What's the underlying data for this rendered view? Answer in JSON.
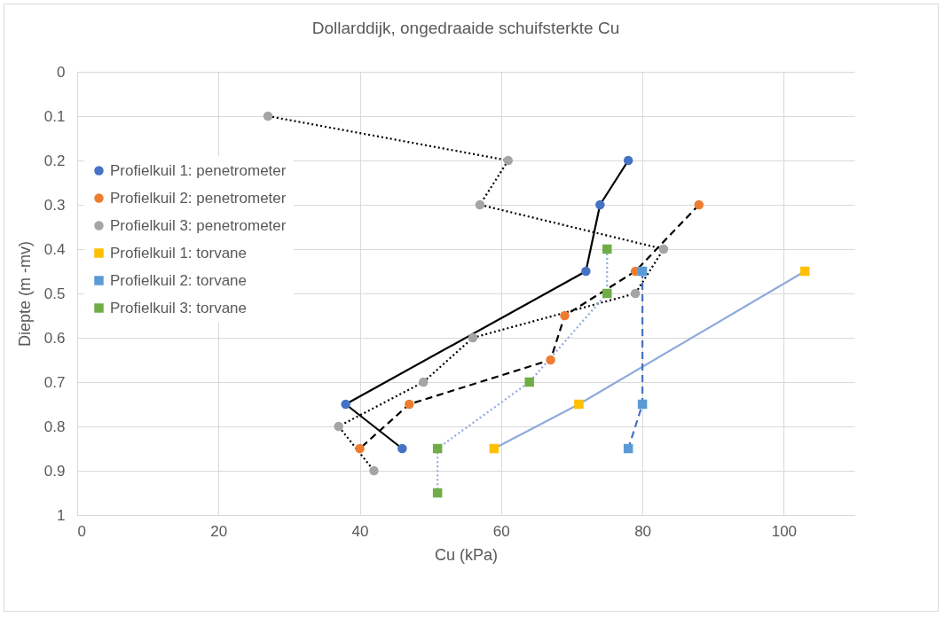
{
  "chart_data": {
    "type": "line",
    "title": "Dollarddijk, ongedraaide schuifsterkte Cu",
    "xlabel": "Cu (kPa)",
    "ylabel": "Diepte (m -mv)",
    "xlim": [
      0,
      110
    ],
    "xticks": [
      0,
      20,
      40,
      60,
      80,
      100
    ],
    "ylim": [
      1,
      0
    ],
    "yticks": [
      0,
      0.1,
      0.2,
      0.3,
      0.4,
      0.5,
      0.6,
      0.7,
      0.8,
      0.9,
      1
    ],
    "grid": true,
    "legend": "top left",
    "series": [
      {
        "name": "Profielkuil 1: penetrometer",
        "color": "#4472c4",
        "marker": "circle",
        "line_style": "solid",
        "x": [
          78,
          74,
          72,
          38,
          46
        ],
        "values": [
          0.2,
          0.3,
          0.45,
          0.75,
          0.85
        ]
      },
      {
        "name": "Profielkuil 2: penetrometer",
        "color": "#ed7d31",
        "marker": "circle",
        "line_style": "dashed",
        "x": [
          88,
          79,
          69,
          67,
          47,
          40
        ],
        "values": [
          0.3,
          0.45,
          0.55,
          0.65,
          0.75,
          0.85
        ]
      },
      {
        "name": "Profielkuil 3: penetrometer",
        "color": "#a5a5a5",
        "marker": "circle",
        "line_style": "dotted",
        "x": [
          27,
          61,
          57,
          83,
          79,
          56,
          49,
          37,
          42
        ],
        "values": [
          0.1,
          0.2,
          0.3,
          0.4,
          0.5,
          0.6,
          0.7,
          0.8,
          0.9
        ]
      },
      {
        "name": "Profielkuil 1: torvane",
        "color": "#ffc000",
        "marker": "square",
        "line_style": "solid",
        "x": [
          103,
          71,
          59
        ],
        "values": [
          0.45,
          0.75,
          0.85
        ]
      },
      {
        "name": "Profielkuil 2: torvane",
        "color": "#5b9bd5",
        "marker": "square",
        "line_style": "dashed",
        "x": [
          80,
          80,
          78
        ],
        "values": [
          0.45,
          0.75,
          0.85
        ]
      },
      {
        "name": "Profielkuil 3: torvane",
        "color": "#70ad47",
        "marker": "square",
        "line_style": "dotted",
        "x": [
          75,
          75,
          64,
          51,
          51
        ],
        "values": [
          0.4,
          0.5,
          0.7,
          0.85,
          0.95
        ]
      }
    ]
  }
}
